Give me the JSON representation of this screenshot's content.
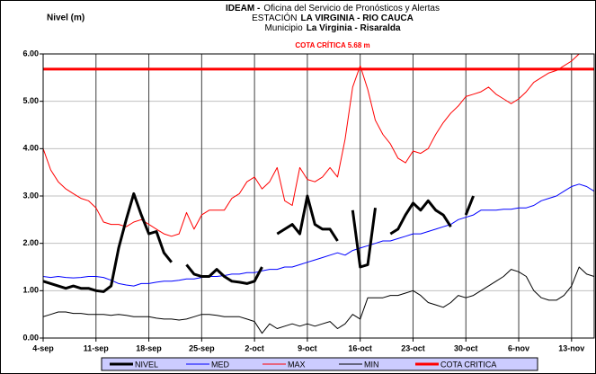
{
  "chart_data": {
    "type": "line",
    "title_lines": [
      [
        {
          "text": "IDEAM -",
          "bold": true
        },
        {
          "text": "Oficina del Servicio de Pronósticos y Alertas",
          "bold": false
        }
      ],
      [
        {
          "text": "ESTACIÓN",
          "bold": false
        },
        {
          "text": "LA VIRGINIA - RIO CAUCA",
          "bold": true
        }
      ],
      [
        {
          "text": "Municipio",
          "bold": false
        },
        {
          "text": "La Virginia - Risaralda",
          "bold": true
        }
      ]
    ],
    "critical_note": "COTA CRÍTICA 5.68 m",
    "y_label": "Nivel (m)",
    "categories": [
      "4-sep",
      null,
      null,
      null,
      null,
      null,
      null,
      "11-sep",
      null,
      null,
      null,
      null,
      null,
      null,
      "18-sep",
      null,
      null,
      null,
      null,
      null,
      null,
      "25-sep",
      null,
      null,
      null,
      null,
      null,
      null,
      "2-oct",
      null,
      null,
      null,
      null,
      null,
      null,
      "9-oct",
      null,
      null,
      null,
      null,
      null,
      null,
      "16-oct",
      null,
      null,
      null,
      null,
      null,
      null,
      "23-oct",
      null,
      null,
      null,
      null,
      null,
      null,
      "30-oct",
      null,
      null,
      null,
      null,
      null,
      null,
      "6-nov",
      null,
      null,
      null,
      null,
      null,
      null,
      "13-nov",
      null,
      null,
      null
    ],
    "ylim": [
      0,
      6
    ],
    "yticks": [
      {
        "value": 0,
        "label": "0.00"
      },
      {
        "value": 1,
        "label": "1.00"
      },
      {
        "value": 2,
        "label": "2.00"
      },
      {
        "value": 3,
        "label": "3.00"
      },
      {
        "value": 4,
        "label": "4.00"
      },
      {
        "value": 5,
        "label": "5.00"
      },
      {
        "value": 6,
        "label": "6.00"
      }
    ],
    "grid": true,
    "legend": "bottom",
    "series": [
      {
        "name": "NIVEL",
        "color": "#000000",
        "width": 3,
        "values": [
          1.2,
          1.15,
          1.1,
          1.05,
          1.1,
          1.05,
          1.05,
          1.0,
          0.98,
          1.1,
          1.9,
          2.5,
          3.05,
          2.6,
          2.2,
          2.25,
          1.8,
          1.6,
          null,
          1.55,
          1.35,
          1.3,
          1.3,
          1.45,
          1.3,
          1.2,
          1.18,
          1.15,
          1.2,
          1.5,
          null,
          2.2,
          2.3,
          2.4,
          2.2,
          3.0,
          2.4,
          2.3,
          2.3,
          2.05,
          null,
          2.7,
          1.5,
          1.55,
          2.75,
          null,
          2.2,
          2.3,
          2.6,
          2.85,
          2.7,
          2.9,
          2.7,
          2.6,
          2.35,
          null,
          2.6,
          3.0,
          null,
          null,
          null,
          null,
          null,
          null,
          null,
          null,
          null,
          null,
          null,
          null,
          null,
          null,
          null,
          null
        ]
      },
      {
        "name": "MED",
        "color": "#0000ff",
        "width": 1,
        "values": [
          1.3,
          1.28,
          1.3,
          1.28,
          1.27,
          1.28,
          1.3,
          1.3,
          1.28,
          1.22,
          1.15,
          1.12,
          1.1,
          1.15,
          1.15,
          1.18,
          1.2,
          1.2,
          1.22,
          1.25,
          1.25,
          1.28,
          1.3,
          1.3,
          1.32,
          1.35,
          1.35,
          1.38,
          1.38,
          1.42,
          1.45,
          1.45,
          1.5,
          1.5,
          1.55,
          1.6,
          1.65,
          1.7,
          1.75,
          1.8,
          1.75,
          1.85,
          1.9,
          1.95,
          2.0,
          2.05,
          2.05,
          2.1,
          2.15,
          2.2,
          2.2,
          2.25,
          2.3,
          2.35,
          2.4,
          2.5,
          2.55,
          2.6,
          2.7,
          2.7,
          2.7,
          2.72,
          2.72,
          2.75,
          2.75,
          2.8,
          2.9,
          2.95,
          3.0,
          3.1,
          3.2,
          3.25,
          3.2,
          3.1
        ]
      },
      {
        "name": "MAX",
        "color": "#ff0000",
        "width": 1,
        "values": [
          4.0,
          3.55,
          3.3,
          3.15,
          3.05,
          2.95,
          2.9,
          2.75,
          2.45,
          2.4,
          2.4,
          2.35,
          2.45,
          2.5,
          2.4,
          2.3,
          2.2,
          2.15,
          2.2,
          2.65,
          2.3,
          2.6,
          2.7,
          2.7,
          2.7,
          2.95,
          3.05,
          3.3,
          3.4,
          3.15,
          3.3,
          3.6,
          2.9,
          2.8,
          3.6,
          3.35,
          3.3,
          3.4,
          3.6,
          3.4,
          4.2,
          5.3,
          5.75,
          5.25,
          4.6,
          4.3,
          4.1,
          3.8,
          3.7,
          3.95,
          3.9,
          4.0,
          4.3,
          4.55,
          4.75,
          4.9,
          5.1,
          5.15,
          5.2,
          5.3,
          5.15,
          5.05,
          4.95,
          5.05,
          5.2,
          5.4,
          5.5,
          5.6,
          5.65,
          5.75,
          5.85,
          6.0,
          null,
          null
        ]
      },
      {
        "name": "MIN",
        "color": "#000000",
        "width": 1,
        "values": [
          0.45,
          0.5,
          0.55,
          0.55,
          0.52,
          0.52,
          0.5,
          0.5,
          0.5,
          0.48,
          0.5,
          0.48,
          0.45,
          0.45,
          0.45,
          0.42,
          0.4,
          0.4,
          0.38,
          0.4,
          0.45,
          0.5,
          0.5,
          0.48,
          0.45,
          0.45,
          0.45,
          0.4,
          0.35,
          0.1,
          0.3,
          0.2,
          0.25,
          0.3,
          0.25,
          0.3,
          0.25,
          0.3,
          0.35,
          0.2,
          0.3,
          0.5,
          0.4,
          0.85,
          0.85,
          0.85,
          0.9,
          0.9,
          0.95,
          1.0,
          0.9,
          0.75,
          0.7,
          0.65,
          0.75,
          0.9,
          0.85,
          0.9,
          1.0,
          1.1,
          1.2,
          1.3,
          1.45,
          1.4,
          1.3,
          1.0,
          0.85,
          0.8,
          0.8,
          0.9,
          1.1,
          1.5,
          1.35,
          1.3
        ]
      },
      {
        "name": "COTA CRITICA",
        "color": "#ff0000",
        "width": 3,
        "value": 5.68
      }
    ]
  }
}
